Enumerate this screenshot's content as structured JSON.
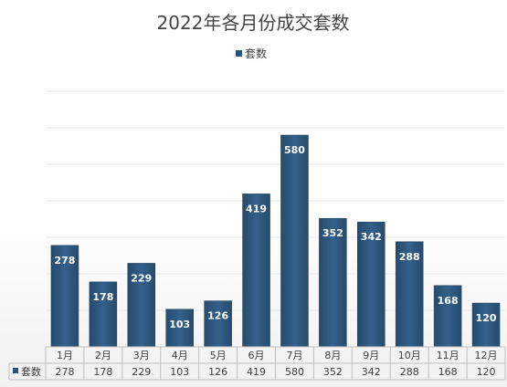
{
  "chart_data": {
    "type": "bar",
    "title": "2022年各月份成交套数",
    "categories": [
      "1月",
      "2月",
      "3月",
      "4月",
      "5月",
      "6月",
      "7月",
      "8月",
      "9月",
      "10月",
      "11月",
      "12月"
    ],
    "series": [
      {
        "name": "套数",
        "values": [
          278,
          178,
          229,
          103,
          126,
          419,
          580,
          352,
          342,
          288,
          168,
          120
        ]
      }
    ],
    "ylim": [
      0,
      700
    ],
    "grid": true,
    "legend_position": "top",
    "data_table": true,
    "bar_color": "#2e5579"
  }
}
